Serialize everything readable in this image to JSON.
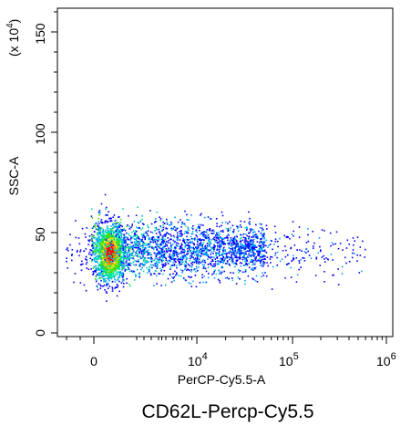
{
  "chart_data": {
    "type": "scatter",
    "subtype": "flow-cytometry density dot plot",
    "title": "CD62L-Percp-Cy5.5",
    "xlabel": "PerCP-Cy5.5-A",
    "ylabel": "SSC-A",
    "y_multiplier": "(x 10^4)",
    "x_scale": "biexponential",
    "x_ticks": [
      {
        "value": 0,
        "base": "0",
        "exp": ""
      },
      {
        "value": 10000,
        "base": "10",
        "exp": "4"
      },
      {
        "value": 100000,
        "base": "10",
        "exp": "5"
      },
      {
        "value": 1000000,
        "base": "10",
        "exp": "6"
      }
    ],
    "y_ticks": [
      0,
      50,
      100,
      150
    ],
    "ylim": [
      -2,
      162
    ],
    "grid": false,
    "legend": "none",
    "colormap": [
      "#0000ff",
      "#00a0ff",
      "#00e0a0",
      "#40e000",
      "#e0e000",
      "#ff8000",
      "#ff0000"
    ],
    "clusters": [
      {
        "name": "main",
        "x_center": 600,
        "x_spread_decades": 0.08,
        "y_center": 40,
        "y_spread": 7,
        "density": "high"
      },
      {
        "name": "tail",
        "x_range": [
          0,
          60000
        ],
        "y_range": [
          25,
          62
        ],
        "density": "medium"
      },
      {
        "name": "sparse",
        "x_range": [
          60000,
          600000
        ],
        "y_range": [
          30,
          55
        ],
        "density": "low"
      }
    ]
  },
  "labels": {
    "y_multiplier_text": "(x 10",
    "y_multiplier_exp": "4",
    "y_multiplier_close": ")",
    "title": "CD62L-Percp-Cy5.5",
    "xlabel": "PerCP-Cy5.5-A",
    "ylabel": "SSC-A",
    "ytick_0": "0",
    "ytick_50": "50",
    "ytick_100": "100",
    "ytick_150": "150",
    "xtick_0": "0",
    "xtick_4_base": "10",
    "xtick_4_exp": "4",
    "xtick_5_base": "10",
    "xtick_5_exp": "5",
    "xtick_6_base": "10",
    "xtick_6_exp": "6"
  }
}
